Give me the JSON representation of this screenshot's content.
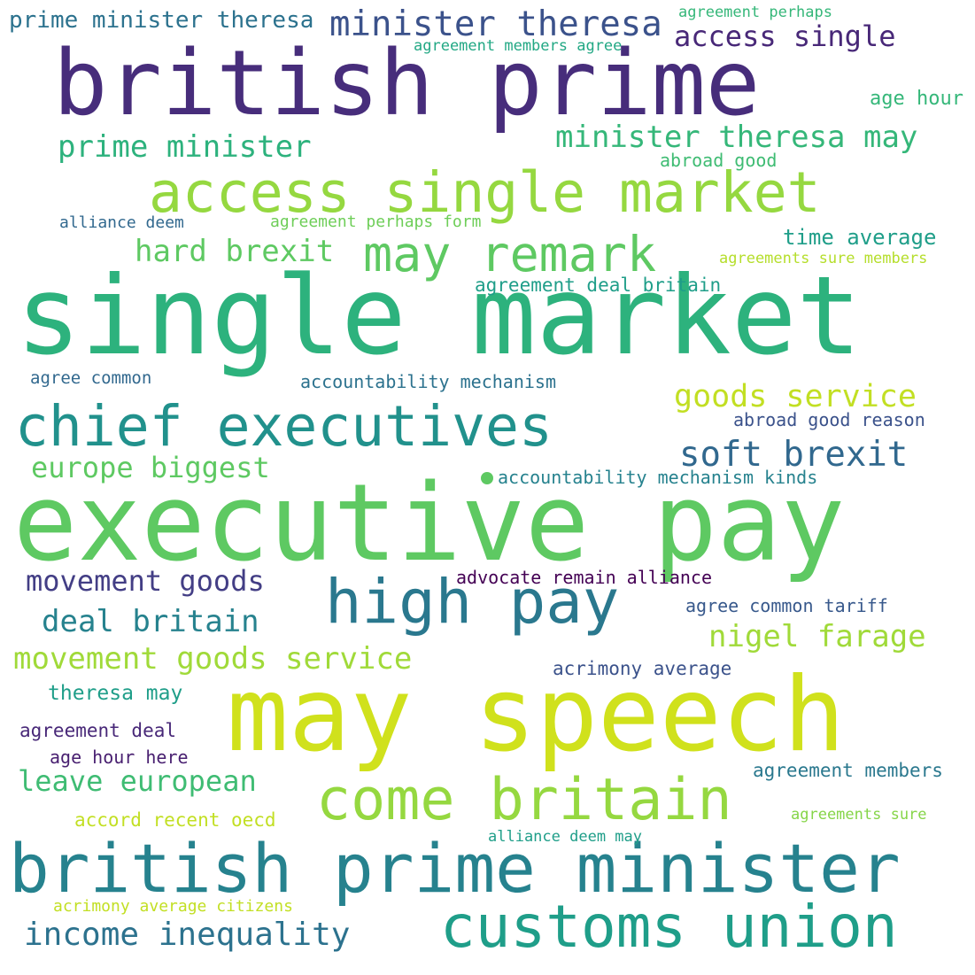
{
  "words": [
    {
      "text": "british prime",
      "color": "#472d7b"
    },
    {
      "text": "single market",
      "color": "#2db27d"
    },
    {
      "text": "executive pay",
      "color": "#5ec962"
    },
    {
      "text": "may speech",
      "color": "#d0e11c"
    },
    {
      "text": "british prime minister",
      "color": "#26828e"
    },
    {
      "text": "access single market",
      "color": "#95d840"
    },
    {
      "text": "chief executives",
      "color": "#21918c"
    },
    {
      "text": "customs union",
      "color": "#1f9e89"
    },
    {
      "text": "high pay",
      "color": "#2a788e"
    },
    {
      "text": "may remark",
      "color": "#5ec962"
    },
    {
      "text": "come britain",
      "color": "#95d840"
    },
    {
      "text": "minister theresa",
      "color": "#3b528b"
    },
    {
      "text": "prime minister theresa",
      "color": "#2c728e"
    },
    {
      "text": "access single",
      "color": "#482878"
    },
    {
      "text": "agreement perhaps",
      "color": "#35b779"
    },
    {
      "text": "agreement members agree",
      "color": "#22a884"
    },
    {
      "text": "age hour",
      "color": "#35b779"
    },
    {
      "text": "minister theresa may",
      "color": "#35b779"
    },
    {
      "text": "prime minister",
      "color": "#2db27d"
    },
    {
      "text": "abroad good",
      "color": "#3fbc73"
    },
    {
      "text": "alliance deem",
      "color": "#31688e"
    },
    {
      "text": "agreement perhaps form",
      "color": "#6ece58"
    },
    {
      "text": "hard brexit",
      "color": "#5ec962"
    },
    {
      "text": "time average",
      "color": "#1f9e89"
    },
    {
      "text": "agreements sure members",
      "color": "#b5de2b"
    },
    {
      "text": "agreement deal britain",
      "color": "#1f9e89"
    },
    {
      "text": "agree common",
      "color": "#31688e"
    },
    {
      "text": "accountability mechanism",
      "color": "#2c728e"
    },
    {
      "text": "goods service",
      "color": "#c2df23"
    },
    {
      "text": "abroad good reason",
      "color": "#3b528b"
    },
    {
      "text": "soft brexit",
      "color": "#31688e"
    },
    {
      "text": "europe biggest",
      "color": "#5ec962"
    },
    {
      "text": "accountability mechanism kinds",
      "color": "#26828e"
    },
    {
      "text": "movement goods",
      "color": "#433e85"
    },
    {
      "text": "advocate remain alliance",
      "color": "#440154"
    },
    {
      "text": "deal britain",
      "color": "#26828e"
    },
    {
      "text": "agree common tariff",
      "color": "#38598c"
    },
    {
      "text": "nigel farage",
      "color": "#a0da39"
    },
    {
      "text": "movement goods service",
      "color": "#a0da39"
    },
    {
      "text": "acrimony average",
      "color": "#3b528b"
    },
    {
      "text": "theresa may",
      "color": "#1f9e89"
    },
    {
      "text": "agreement deal",
      "color": "#482878"
    },
    {
      "text": "age hour here",
      "color": "#481f70"
    },
    {
      "text": "agreement members",
      "color": "#2a788e"
    },
    {
      "text": "leave european",
      "color": "#3fbc73"
    },
    {
      "text": "accord recent oecd",
      "color": "#c2df23"
    },
    {
      "text": "agreements sure",
      "color": "#86d549"
    },
    {
      "text": "alliance deem may",
      "color": "#1f9e89"
    },
    {
      "text": "acrimony average citizens",
      "color": "#c2df23"
    },
    {
      "text": "income inequality",
      "color": "#2c728e"
    }
  ]
}
